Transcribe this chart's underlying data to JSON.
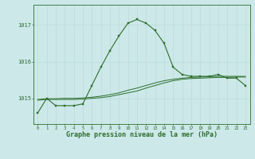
{
  "background_color": "#cce8e8",
  "grid_color": "#b8d8d8",
  "line_color": "#2d6e2d",
  "marker_color": "#2d6e2d",
  "xlabel": "Graphe pression niveau de la mer (hPa)",
  "xlabel_fontsize": 6.0,
  "ylabel_ticks": [
    1015,
    1016,
    1017
  ],
  "xlim": [
    -0.5,
    23.5
  ],
  "ylim": [
    1014.3,
    1017.55
  ],
  "x_ticks": [
    0,
    1,
    2,
    3,
    4,
    5,
    6,
    7,
    8,
    9,
    10,
    11,
    12,
    13,
    14,
    15,
    16,
    17,
    18,
    19,
    20,
    21,
    22,
    23
  ],
  "series_main": [
    1014.6,
    1015.0,
    1014.8,
    1014.8,
    1014.8,
    1014.85,
    1015.35,
    1015.85,
    1016.3,
    1016.7,
    1017.05,
    1017.15,
    1017.05,
    1016.85,
    1016.5,
    1015.85,
    1015.65,
    1015.6,
    1015.6,
    1015.6,
    1015.65,
    1015.55,
    1015.55,
    1015.35
  ],
  "series_trend1": [
    1014.95,
    1014.97,
    1014.97,
    1014.97,
    1014.97,
    1014.98,
    1015.0,
    1015.02,
    1015.05,
    1015.1,
    1015.15,
    1015.2,
    1015.28,
    1015.35,
    1015.42,
    1015.48,
    1015.52,
    1015.54,
    1015.55,
    1015.56,
    1015.57,
    1015.57,
    1015.58,
    1015.58
  ],
  "series_trend2": [
    1014.97,
    1014.99,
    1014.99,
    1015.0,
    1015.0,
    1015.01,
    1015.03,
    1015.06,
    1015.1,
    1015.15,
    1015.22,
    1015.28,
    1015.35,
    1015.42,
    1015.48,
    1015.52,
    1015.55,
    1015.57,
    1015.58,
    1015.59,
    1015.6,
    1015.6,
    1015.6,
    1015.6
  ]
}
